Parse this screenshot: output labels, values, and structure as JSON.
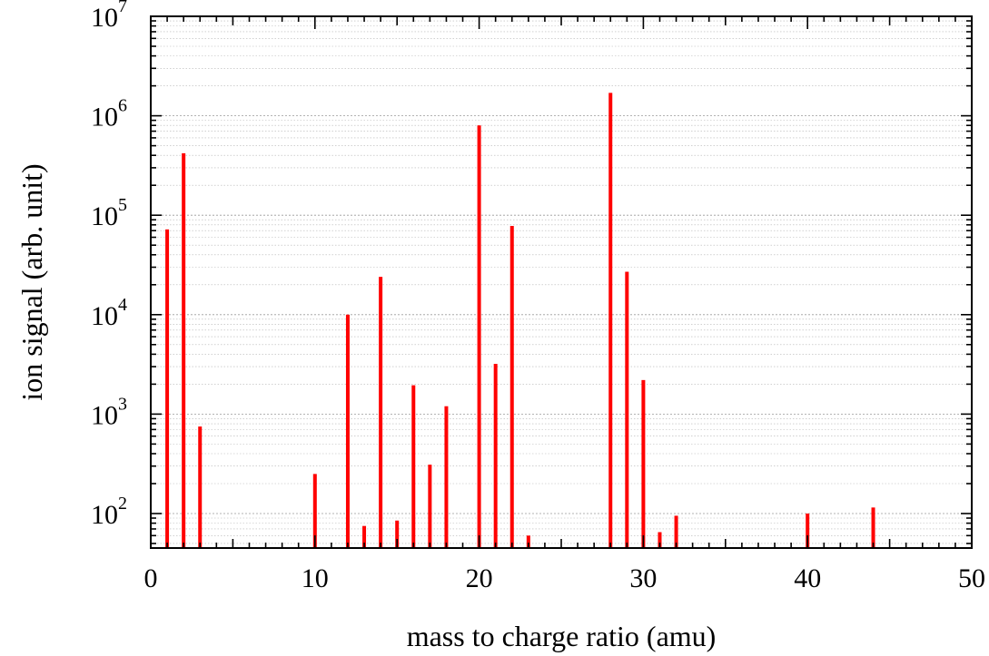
{
  "chart_data": {
    "type": "bar",
    "title": "",
    "xlabel": "mass to charge ratio (amu)",
    "ylabel": "ion signal (arb. unit)",
    "xlim": [
      0,
      50
    ],
    "ylim": [
      45,
      10000000
    ],
    "yscale": "log",
    "grid": true,
    "x_ticks": [
      0,
      10,
      20,
      30,
      40,
      50
    ],
    "y_ticks": [
      {
        "value": 100,
        "base": "10",
        "exp": "2"
      },
      {
        "value": 1000,
        "base": "10",
        "exp": "3"
      },
      {
        "value": 10000,
        "base": "10",
        "exp": "4"
      },
      {
        "value": 100000,
        "base": "10",
        "exp": "5"
      },
      {
        "value": 1000000,
        "base": "10",
        "exp": "6"
      },
      {
        "value": 10000000,
        "base": "10",
        "exp": "7"
      }
    ],
    "bar_color": "#ff0000",
    "x": [
      1,
      2,
      3,
      10,
      12,
      13,
      14,
      15,
      16,
      17,
      18,
      20,
      21,
      22,
      23,
      28,
      29,
      30,
      31,
      32,
      40,
      44
    ],
    "values": [
      72000,
      420000,
      750,
      250,
      10000,
      75,
      24000,
      85,
      1950,
      310,
      1200,
      800000,
      3200,
      78000,
      60,
      1700000,
      27000,
      2200,
      65,
      95,
      100,
      115
    ]
  }
}
